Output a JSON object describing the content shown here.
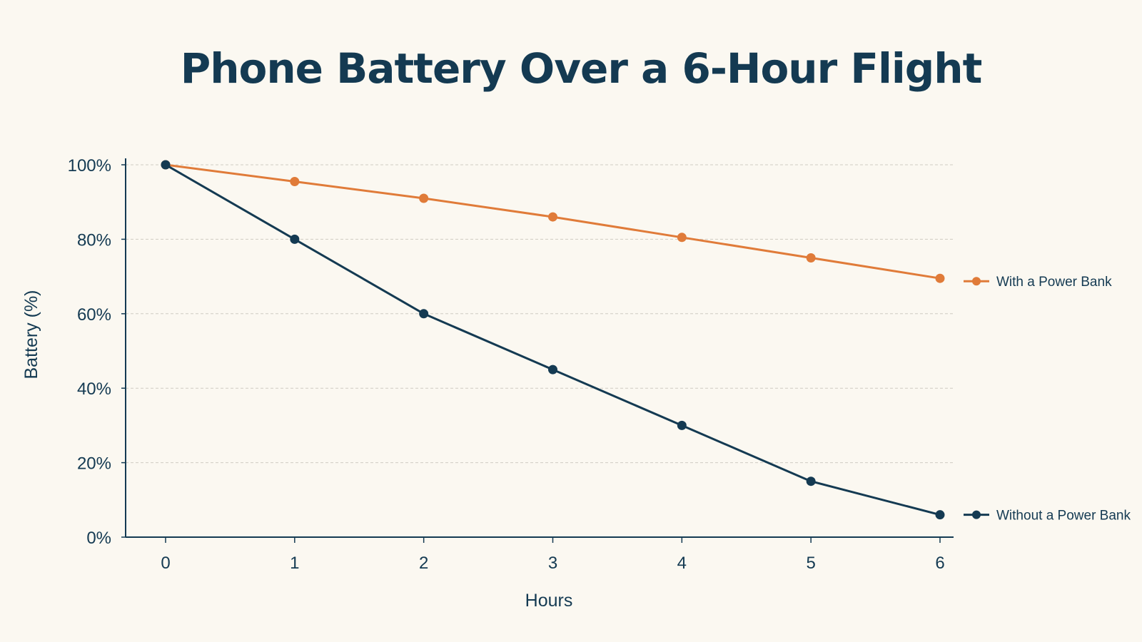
{
  "chart_data": {
    "type": "line",
    "title": "Phone Battery Over a 6-Hour Flight",
    "xlabel": "Hours",
    "ylabel": "Battery (%)",
    "x": [
      0,
      1,
      2,
      3,
      4,
      5,
      6
    ],
    "x_ticks": [
      "0",
      "1",
      "2",
      "3",
      "4",
      "5",
      "6"
    ],
    "xlim": [
      0,
      6
    ],
    "ylim": [
      0,
      100
    ],
    "y_ticks": [
      "0%",
      "20%",
      "40%",
      "60%",
      "80%",
      "100%"
    ],
    "y_tick_values": [
      0,
      20,
      40,
      60,
      80,
      100
    ],
    "grid": "horizontal dashed",
    "legend": "right, labels at line ends",
    "series": [
      {
        "name": "With a Power Bank",
        "color": "#e07b39",
        "values": [
          100,
          95.5,
          91,
          86,
          80.5,
          75,
          69.5
        ]
      },
      {
        "name": "Without a Power Bank",
        "color": "#143a52",
        "values": [
          100,
          80,
          60,
          45,
          30,
          15,
          6
        ]
      }
    ]
  },
  "colors": {
    "background": "#fbf8f1",
    "text": "#143a52",
    "grid": "#cfcbc2"
  }
}
